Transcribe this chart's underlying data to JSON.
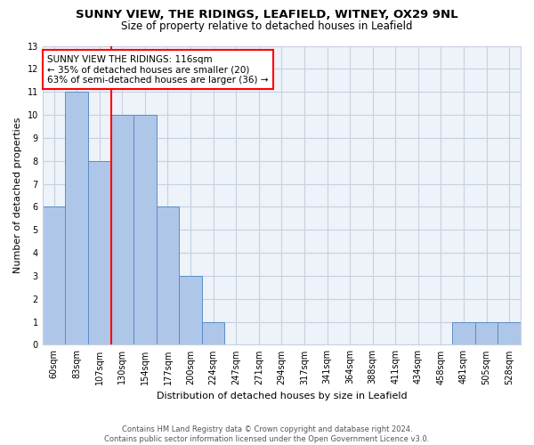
{
  "title": "SUNNY VIEW, THE RIDINGS, LEAFIELD, WITNEY, OX29 9NL",
  "subtitle": "Size of property relative to detached houses in Leafield",
  "xlabel": "Distribution of detached houses by size in Leafield",
  "ylabel": "Number of detached properties",
  "categories": [
    "60sqm",
    "83sqm",
    "107sqm",
    "130sqm",
    "154sqm",
    "177sqm",
    "200sqm",
    "224sqm",
    "247sqm",
    "271sqm",
    "294sqm",
    "317sqm",
    "341sqm",
    "364sqm",
    "388sqm",
    "411sqm",
    "434sqm",
    "458sqm",
    "481sqm",
    "505sqm",
    "528sqm"
  ],
  "values": [
    6,
    11,
    8,
    10,
    10,
    6,
    3,
    1,
    0,
    0,
    0,
    0,
    0,
    0,
    0,
    0,
    0,
    0,
    1,
    1,
    1
  ],
  "bar_color": "#aec6e8",
  "bar_edge_color": "#5b8dc8",
  "red_line_x": 2.5,
  "annotation_line1": "SUNNY VIEW THE RIDINGS: 116sqm",
  "annotation_line2": "← 35% of detached houses are smaller (20)",
  "annotation_line3": "63% of semi-detached houses are larger (36) →",
  "red_line_color": "red",
  "ylim": [
    0,
    13
  ],
  "yticks": [
    0,
    1,
    2,
    3,
    4,
    5,
    6,
    7,
    8,
    9,
    10,
    11,
    12,
    13
  ],
  "footer1": "Contains HM Land Registry data © Crown copyright and database right 2024.",
  "footer2": "Contains public sector information licensed under the Open Government Licence v3.0.",
  "background_color": "#eef2f9",
  "grid_color": "#c8d0e0",
  "title_fontsize": 9.5,
  "subtitle_fontsize": 8.5,
  "tick_fontsize": 7,
  "ylabel_fontsize": 8,
  "xlabel_fontsize": 8,
  "annotation_fontsize": 7.5,
  "footer_fontsize": 6
}
